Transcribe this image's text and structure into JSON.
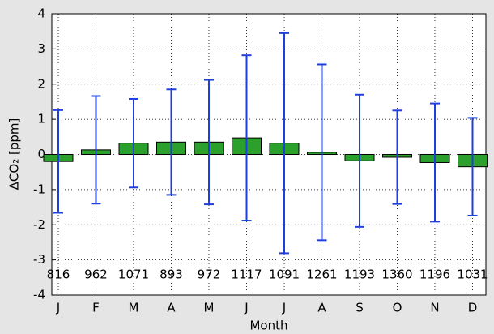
{
  "chart_data": {
    "type": "bar",
    "xlabel": "Month",
    "ylabel": "ΔCO₂ [ppm]",
    "categories": [
      "J",
      "F",
      "M",
      "A",
      "M",
      "J",
      "J",
      "A",
      "S",
      "O",
      "N",
      "D"
    ],
    "values": [
      -0.2,
      0.13,
      0.32,
      0.35,
      0.35,
      0.47,
      0.32,
      0.06,
      -0.18,
      -0.08,
      -0.23,
      -0.35
    ],
    "errors": [
      1.46,
      1.53,
      1.26,
      1.5,
      1.77,
      2.35,
      3.13,
      2.5,
      1.88,
      1.33,
      1.68,
      1.39
    ],
    "annotations": [
      816,
      962,
      1071,
      893,
      972,
      1117,
      1091,
      1261,
      1193,
      1360,
      1196,
      1031
    ],
    "color": "#2ca02c",
    "error_color": "#1f3fdc",
    "ylim": [
      -4,
      4
    ],
    "yticks": [
      -4,
      -3,
      -2,
      -1,
      0,
      1,
      2,
      3,
      4
    ],
    "grid": true
  }
}
